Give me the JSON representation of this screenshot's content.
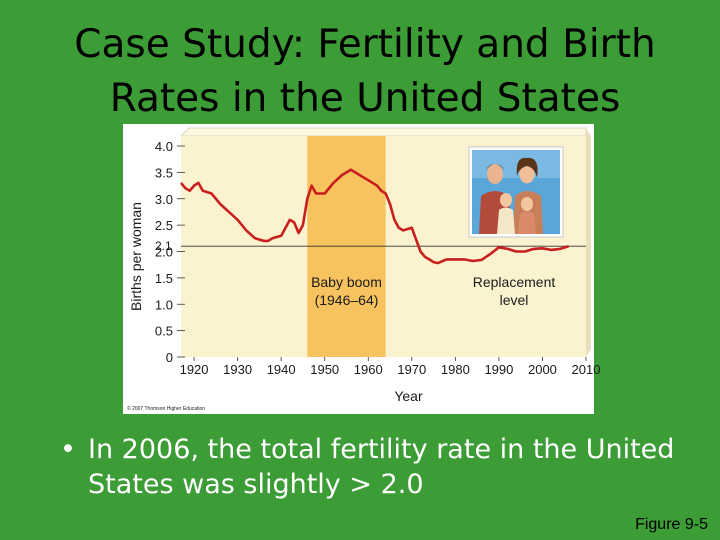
{
  "slide": {
    "title_line1": "Case Study: Fertility and Birth",
    "title_line2": "Rates in the United States",
    "bullet_marker": "•",
    "bullet_text": "In 2006, the total fertility rate in the United States was slightly > 2.0",
    "figure_label": "Figure 9-5",
    "copyright": "© 2007 Thomson Higher Education",
    "colors": {
      "background": "#3c9c35",
      "panel": "#fbf3cf",
      "baby_boom_band": "#f7c35e",
      "line": "#c81e1e"
    }
  },
  "chart_data": {
    "type": "line",
    "xlabel": "Year",
    "ylabel": "Births per woman",
    "xlim": [
      1917,
      2010
    ],
    "ylim": [
      0,
      4.0
    ],
    "x_ticks": [
      "1920",
      "1930",
      "1940",
      "1950",
      "1960",
      "1970",
      "1980",
      "1990",
      "2000",
      "2010"
    ],
    "y_ticks": [
      "0",
      "0.5",
      "1.0",
      "1.5",
      "2.0",
      "2.5",
      "3.0",
      "3.5",
      "4.0"
    ],
    "reference_line": {
      "value": 2.1,
      "label": "2.1"
    },
    "band": {
      "from": 1946,
      "to": 1964,
      "label_line1": "Baby boom",
      "label_line2": "(1946–64)"
    },
    "annotation": {
      "line1": "Replacement",
      "line2": "level"
    },
    "series": [
      {
        "x": [
          1917,
          1918,
          1919,
          1920,
          1921,
          1922,
          1924,
          1926,
          1928,
          1930,
          1932,
          1934,
          1936,
          1937,
          1938,
          1940,
          1942,
          1943,
          1944,
          1945,
          1946,
          1947,
          1948,
          1950,
          1952,
          1954,
          1955,
          1956,
          1957,
          1958,
          1959,
          1960,
          1961,
          1962,
          1963,
          1964,
          1965,
          1966,
          1967,
          1968,
          1970,
          1972,
          1973,
          1974,
          1975,
          1976,
          1978,
          1980,
          1982,
          1984,
          1986,
          1988,
          1990,
          1992,
          1994,
          1996,
          1998,
          2000,
          2002,
          2004,
          2006
        ],
        "y": [
          3.3,
          3.2,
          3.15,
          3.25,
          3.3,
          3.15,
          3.1,
          2.9,
          2.75,
          2.6,
          2.4,
          2.25,
          2.2,
          2.2,
          2.25,
          2.3,
          2.6,
          2.55,
          2.35,
          2.5,
          3.0,
          3.25,
          3.1,
          3.1,
          3.3,
          3.45,
          3.5,
          3.55,
          3.5,
          3.45,
          3.4,
          3.35,
          3.3,
          3.25,
          3.15,
          3.1,
          2.9,
          2.6,
          2.45,
          2.4,
          2.45,
          2.0,
          1.9,
          1.85,
          1.8,
          1.78,
          1.85,
          1.85,
          1.85,
          1.82,
          1.84,
          1.95,
          2.08,
          2.05,
          2.0,
          2.0,
          2.05,
          2.06,
          2.03,
          2.05,
          2.1
        ]
      }
    ]
  }
}
